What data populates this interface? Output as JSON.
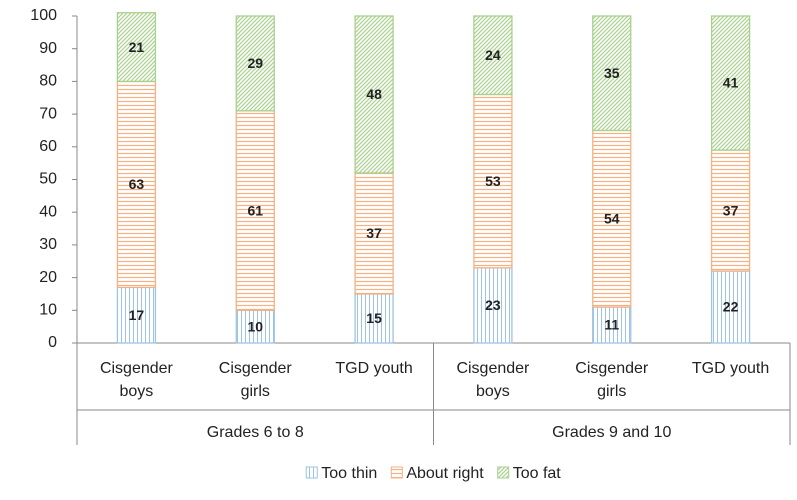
{
  "chart_data": {
    "type": "stacked_bar",
    "categories": [
      "Cisgender boys",
      "Cisgender girls",
      "TGD youth",
      "Cisgender boys",
      "Cisgender girls",
      "TGD youth"
    ],
    "groups": [
      "Grades 6 to 8",
      "Grades 9 and 10"
    ],
    "series": [
      {
        "name": "Too thin",
        "color": "#9dc3e6",
        "values": [
          17,
          10,
          15,
          23,
          11,
          22
        ]
      },
      {
        "name": "About right",
        "color": "#f4b183",
        "values": [
          63,
          61,
          37,
          53,
          54,
          37
        ]
      },
      {
        "name": "Too fat",
        "color": "#a9d18e",
        "values": [
          21,
          29,
          48,
          24,
          35,
          41
        ]
      }
    ],
    "ylim": [
      0,
      100
    ],
    "yticks": [
      0,
      10,
      20,
      30,
      40,
      50,
      60,
      70,
      80,
      90,
      100
    ],
    "legend": "bottom"
  }
}
